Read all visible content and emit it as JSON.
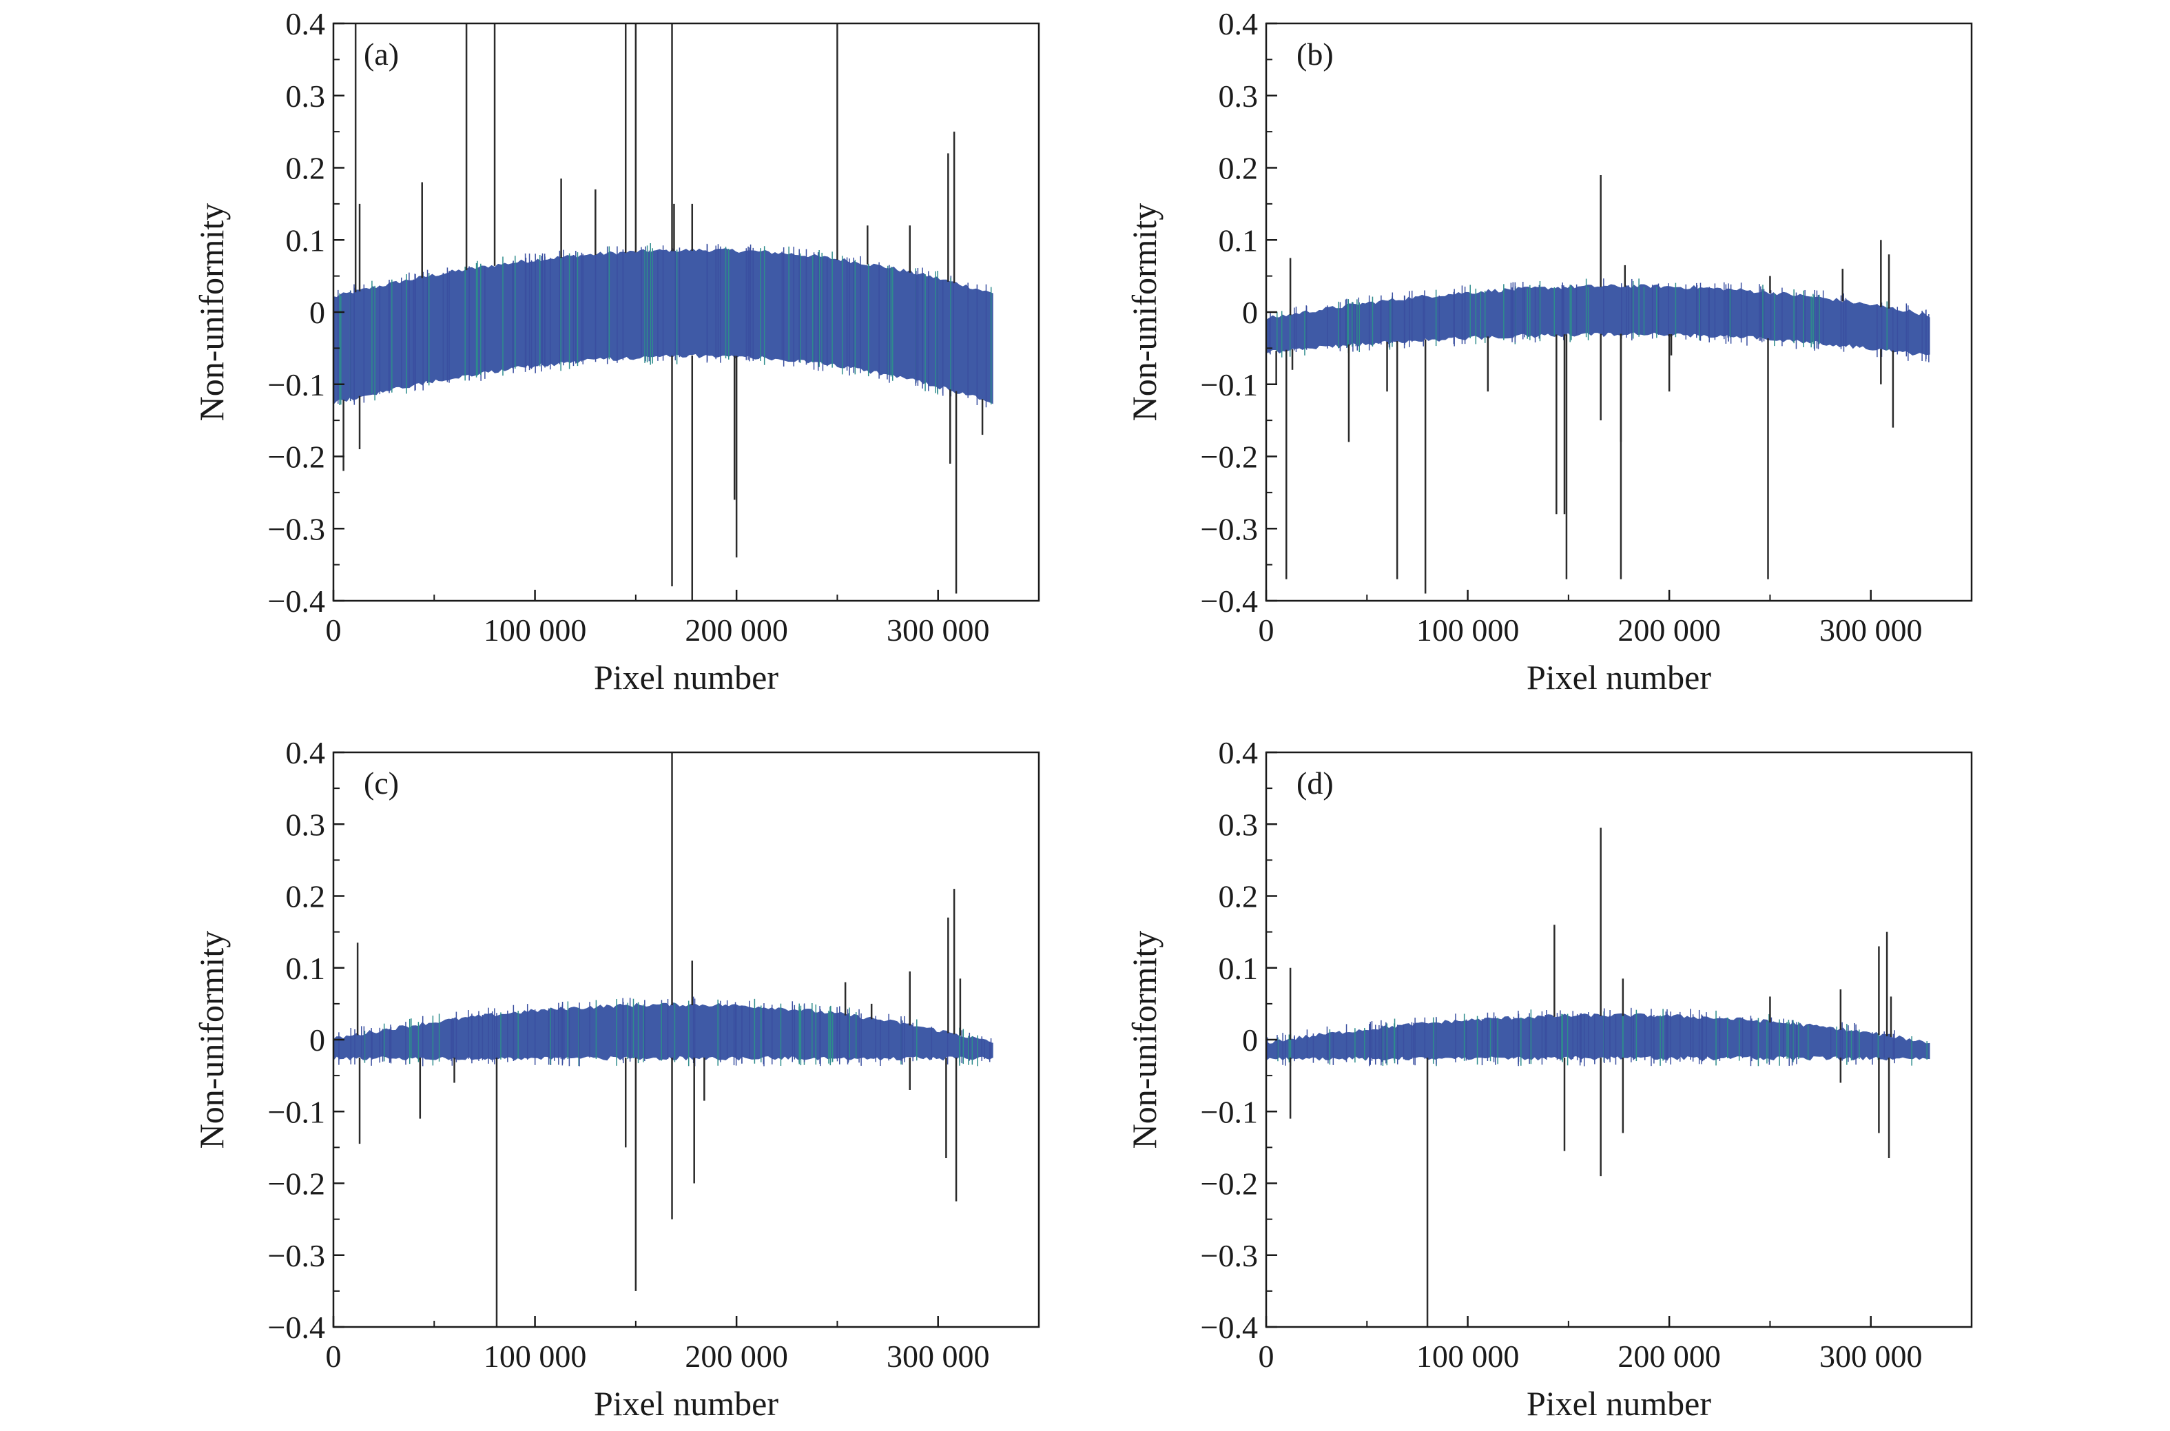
{
  "chart_data": [
    {
      "type": "line",
      "panel_label": "(a)",
      "xlabel": "Pixel number",
      "ylabel": "Non-uniformity",
      "xlim": [
        0,
        350000
      ],
      "ylim": [
        -0.4,
        0.4
      ],
      "x_ticks": [
        0,
        100000,
        200000,
        300000
      ],
      "x_tick_labels": [
        "0",
        "100 000",
        "200 000",
        "300 000"
      ],
      "y_ticks": [
        0.4,
        0.3,
        0.2,
        0.1,
        0,
        -0.1,
        -0.2,
        -0.3,
        -0.4
      ],
      "y_tick_labels": [
        "0.4",
        "0.3",
        "0.2",
        "0.1",
        "0",
        "−0.1",
        "−0.2",
        "−0.3",
        "−0.4"
      ],
      "band": {
        "x_start": 0,
        "x_end": 327000,
        "upper_start": 0.02,
        "upper_peak": 0.085,
        "upper_end": 0.025,
        "peak_x": 185000,
        "lower_start": -0.125,
        "lower_peak": -0.06,
        "lower_end": -0.125,
        "color": "#3f5aa6"
      },
      "spikes": [
        {
          "x": 11000,
          "y": 0.4
        },
        {
          "x": 13000,
          "y": 0.15
        },
        {
          "x": 5000,
          "y": -0.22
        },
        {
          "x": 13000,
          "y": -0.19
        },
        {
          "x": 44000,
          "y": 0.18
        },
        {
          "x": 66000,
          "y": 0.4
        },
        {
          "x": 80000,
          "y": 0.4
        },
        {
          "x": 113000,
          "y": 0.185
        },
        {
          "x": 130000,
          "y": 0.17
        },
        {
          "x": 145000,
          "y": 0.4
        },
        {
          "x": 150000,
          "y": 0.4
        },
        {
          "x": 168000,
          "y": 0.4
        },
        {
          "x": 168000,
          "y": -0.38
        },
        {
          "x": 169000,
          "y": 0.15
        },
        {
          "x": 178000,
          "y": -0.4
        },
        {
          "x": 178000,
          "y": 0.15
        },
        {
          "x": 199000,
          "y": -0.26
        },
        {
          "x": 200000,
          "y": -0.34
        },
        {
          "x": 250000,
          "y": 0.4
        },
        {
          "x": 265000,
          "y": 0.12
        },
        {
          "x": 286000,
          "y": 0.12
        },
        {
          "x": 305000,
          "y": 0.22
        },
        {
          "x": 308000,
          "y": 0.25
        },
        {
          "x": 306000,
          "y": -0.21
        },
        {
          "x": 309000,
          "y": -0.39
        },
        {
          "x": 322000,
          "y": -0.17
        }
      ]
    },
    {
      "type": "line",
      "panel_label": "(b)",
      "xlabel": "Pixel number",
      "ylabel": "Non-uniformity",
      "xlim": [
        0,
        350000
      ],
      "ylim": [
        -0.4,
        0.4
      ],
      "x_ticks": [
        0,
        100000,
        200000,
        300000
      ],
      "x_tick_labels": [
        "0",
        "100 000",
        "200 000",
        "300 000"
      ],
      "y_ticks": [
        0.4,
        0.3,
        0.2,
        0.1,
        0,
        -0.1,
        -0.2,
        -0.3,
        -0.4
      ],
      "y_tick_labels": [
        "0.4",
        "0.3",
        "0.2",
        "0.1",
        "0",
        "−0.1",
        "−0.2",
        "−0.3",
        "−0.4"
      ],
      "band": {
        "x_start": 0,
        "x_end": 329000,
        "upper_start": -0.01,
        "upper_peak": 0.035,
        "upper_end": -0.005,
        "peak_x": 180000,
        "lower_start": -0.055,
        "lower_peak": -0.03,
        "lower_end": -0.06,
        "color": "#3f5aa6"
      },
      "spikes": [
        {
          "x": 12000,
          "y": 0.075
        },
        {
          "x": 10000,
          "y": -0.37
        },
        {
          "x": 5000,
          "y": -0.1
        },
        {
          "x": 13000,
          "y": -0.08
        },
        {
          "x": 41000,
          "y": -0.18
        },
        {
          "x": 60000,
          "y": -0.11
        },
        {
          "x": 65000,
          "y": -0.37
        },
        {
          "x": 79000,
          "y": -0.39
        },
        {
          "x": 110000,
          "y": -0.11
        },
        {
          "x": 144000,
          "y": -0.28
        },
        {
          "x": 149000,
          "y": -0.37
        },
        {
          "x": 148000,
          "y": -0.28
        },
        {
          "x": 166000,
          "y": 0.19
        },
        {
          "x": 166000,
          "y": -0.15
        },
        {
          "x": 176000,
          "y": -0.37
        },
        {
          "x": 178000,
          "y": 0.065
        },
        {
          "x": 176000,
          "y": -0.18
        },
        {
          "x": 200000,
          "y": -0.11
        },
        {
          "x": 201000,
          "y": -0.06
        },
        {
          "x": 249000,
          "y": -0.37
        },
        {
          "x": 250000,
          "y": 0.05
        },
        {
          "x": 286000,
          "y": 0.06
        },
        {
          "x": 305000,
          "y": 0.1
        },
        {
          "x": 305000,
          "y": -0.1
        },
        {
          "x": 309000,
          "y": 0.08
        },
        {
          "x": 311000,
          "y": -0.16
        }
      ]
    },
    {
      "type": "line",
      "panel_label": "(c)",
      "xlabel": "Pixel number",
      "ylabel": "Non-uniformity",
      "xlim": [
        0,
        350000
      ],
      "ylim": [
        -0.4,
        0.4
      ],
      "x_ticks": [
        0,
        100000,
        200000,
        300000
      ],
      "x_tick_labels": [
        "0",
        "100 000",
        "200 000",
        "300 000"
      ],
      "y_ticks": [
        0.4,
        0.3,
        0.2,
        0.1,
        0,
        -0.1,
        -0.2,
        -0.3,
        -0.4
      ],
      "y_tick_labels": [
        "0.4",
        "0.3",
        "0.2",
        "0.1",
        "0",
        "−0.1",
        "−0.2",
        "−0.3",
        "−0.4"
      ],
      "band": {
        "x_start": 0,
        "x_end": 327000,
        "upper_start": 0.0,
        "upper_peak": 0.048,
        "upper_end": -0.005,
        "peak_x": 175000,
        "lower_start": -0.025,
        "lower_peak": -0.025,
        "lower_end": -0.025,
        "color": "#3f5aa6"
      },
      "spikes": [
        {
          "x": 12000,
          "y": 0.135
        },
        {
          "x": 13000,
          "y": -0.145
        },
        {
          "x": 43000,
          "y": -0.11
        },
        {
          "x": 60000,
          "y": -0.06
        },
        {
          "x": 81000,
          "y": -0.4
        },
        {
          "x": 145000,
          "y": -0.15
        },
        {
          "x": 150000,
          "y": -0.35
        },
        {
          "x": 168000,
          "y": 0.4
        },
        {
          "x": 168000,
          "y": -0.25
        },
        {
          "x": 178000,
          "y": 0.11
        },
        {
          "x": 179000,
          "y": -0.2
        },
        {
          "x": 184000,
          "y": -0.085
        },
        {
          "x": 254000,
          "y": 0.08
        },
        {
          "x": 267000,
          "y": 0.05
        },
        {
          "x": 286000,
          "y": 0.095
        },
        {
          "x": 286000,
          "y": -0.07
        },
        {
          "x": 305000,
          "y": 0.17
        },
        {
          "x": 304000,
          "y": -0.165
        },
        {
          "x": 308000,
          "y": 0.21
        },
        {
          "x": 309000,
          "y": -0.225
        },
        {
          "x": 311000,
          "y": 0.085
        }
      ]
    },
    {
      "type": "line",
      "panel_label": "(d)",
      "xlabel": "Pixel number",
      "ylabel": "Non-uniformity",
      "xlim": [
        0,
        350000
      ],
      "ylim": [
        -0.4,
        0.4
      ],
      "x_ticks": [
        0,
        100000,
        200000,
        300000
      ],
      "x_tick_labels": [
        "0",
        "100 000",
        "200 000",
        "300 000"
      ],
      "y_ticks": [
        0.4,
        0.3,
        0.2,
        0.1,
        0,
        -0.1,
        -0.2,
        -0.3,
        -0.4
      ],
      "y_tick_labels": [
        "0.4",
        "0.3",
        "0.2",
        "0.1",
        "0",
        "−0.1",
        "−0.2",
        "−0.3",
        "−0.4"
      ],
      "band": {
        "x_start": 0,
        "x_end": 329000,
        "upper_start": -0.005,
        "upper_peak": 0.033,
        "upper_end": -0.005,
        "peak_x": 175000,
        "lower_start": -0.025,
        "lower_peak": -0.025,
        "lower_end": -0.025,
        "color": "#3f5aa6"
      },
      "spikes": [
        {
          "x": 12000,
          "y": 0.1
        },
        {
          "x": 12000,
          "y": -0.11
        },
        {
          "x": 80000,
          "y": -0.4
        },
        {
          "x": 143000,
          "y": 0.16
        },
        {
          "x": 148000,
          "y": -0.155
        },
        {
          "x": 166000,
          "y": 0.295
        },
        {
          "x": 166000,
          "y": -0.19
        },
        {
          "x": 177000,
          "y": 0.085
        },
        {
          "x": 177000,
          "y": -0.13
        },
        {
          "x": 250000,
          "y": 0.06
        },
        {
          "x": 285000,
          "y": 0.07
        },
        {
          "x": 285000,
          "y": -0.06
        },
        {
          "x": 304000,
          "y": 0.13
        },
        {
          "x": 304000,
          "y": -0.13
        },
        {
          "x": 308000,
          "y": 0.15
        },
        {
          "x": 309000,
          "y": -0.165
        },
        {
          "x": 310000,
          "y": 0.06
        }
      ]
    }
  ]
}
